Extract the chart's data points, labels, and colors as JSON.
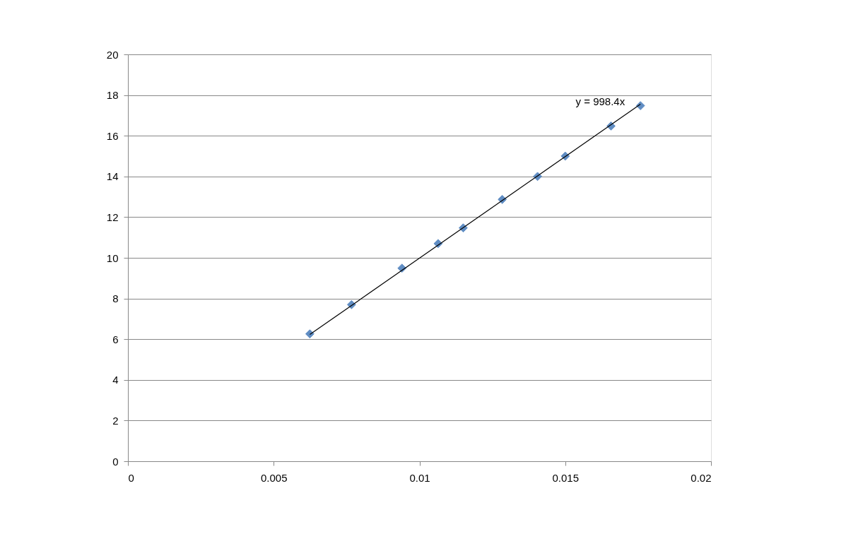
{
  "chart_data": {
    "type": "scatter",
    "xlim": [
      0,
      0.02
    ],
    "xticks": [
      0,
      0.005,
      0.01,
      0.015,
      0.02
    ],
    "ylim": [
      0,
      20
    ],
    "yticks": [
      0,
      2,
      4,
      6,
      8,
      10,
      12,
      14,
      16,
      18,
      20
    ],
    "grid": "y",
    "marker": "diamond",
    "series": [
      {
        "color": "#4f81bd",
        "x": [
          0.00624,
          0.00767,
          0.0094,
          0.01064,
          0.0115,
          0.01284,
          0.01405,
          0.015,
          0.01657,
          0.01758
        ],
        "values": [
          6.26,
          7.7,
          9.49,
          10.7,
          11.47,
          12.87,
          14.0,
          15.0,
          16.48,
          17.48
        ]
      },
      {
        "type": "line",
        "color": "#000000",
        "line_style": "solid",
        "marker": "none",
        "x": [
          0.00624,
          0.01758
        ],
        "values": [
          6.23,
          17.55
        ]
      }
    ],
    "annotations": [
      "y = 998.4x"
    ]
  }
}
